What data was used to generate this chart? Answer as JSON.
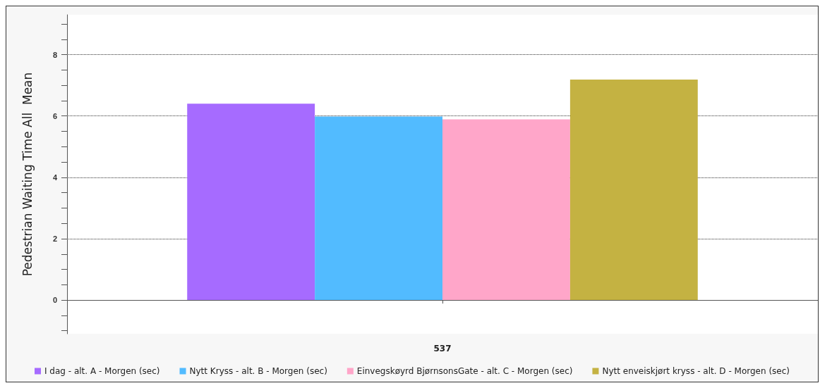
{
  "chart_data": {
    "type": "bar",
    "ylabel": "Pedestrian Waiting Time All  Mean",
    "categories": [
      "537"
    ],
    "series": [
      {
        "name": "I dag - alt. A - Morgen (sec)",
        "color": "#a66bff",
        "values": [
          6.4
        ]
      },
      {
        "name": "Nytt Kryss - alt. B - Morgen (sec)",
        "color": "#52bbff",
        "values": [
          5.98
        ]
      },
      {
        "name": "Einvegskøyrd BjørnsonsGate - alt. C - Morgen (sec)",
        "color": "#ffa6c9",
        "values": [
          5.89
        ]
      },
      {
        "name": "Nytt enveiskjørt kryss - alt. D - Morgen (sec)",
        "color": "#c4b242",
        "values": [
          7.19
        ]
      }
    ],
    "ylim": [
      -1.1,
      9.3
    ],
    "yticks": [
      {
        "value": -1,
        "label": null
      },
      {
        "value": -0.5,
        "label": null
      },
      0,
      {
        "value": 0.5,
        "label": null
      },
      {
        "value": 1,
        "label": null
      },
      {
        "value": 1.5,
        "label": null
      },
      2,
      {
        "value": 2.5,
        "label": null
      },
      {
        "value": 3,
        "label": null
      },
      {
        "value": 3.5,
        "label": null
      },
      4,
      {
        "value": 4.5,
        "label": null
      },
      {
        "value": 5,
        "label": null
      },
      {
        "value": 5.5,
        "label": null
      },
      6,
      {
        "value": 6.5,
        "label": null
      },
      {
        "value": 7,
        "label": null
      },
      {
        "value": 7.5,
        "label": null
      },
      8,
      {
        "value": 8.5,
        "label": null
      },
      {
        "value": 9,
        "label": null
      }
    ],
    "grid": "y",
    "legend": "bottom"
  }
}
